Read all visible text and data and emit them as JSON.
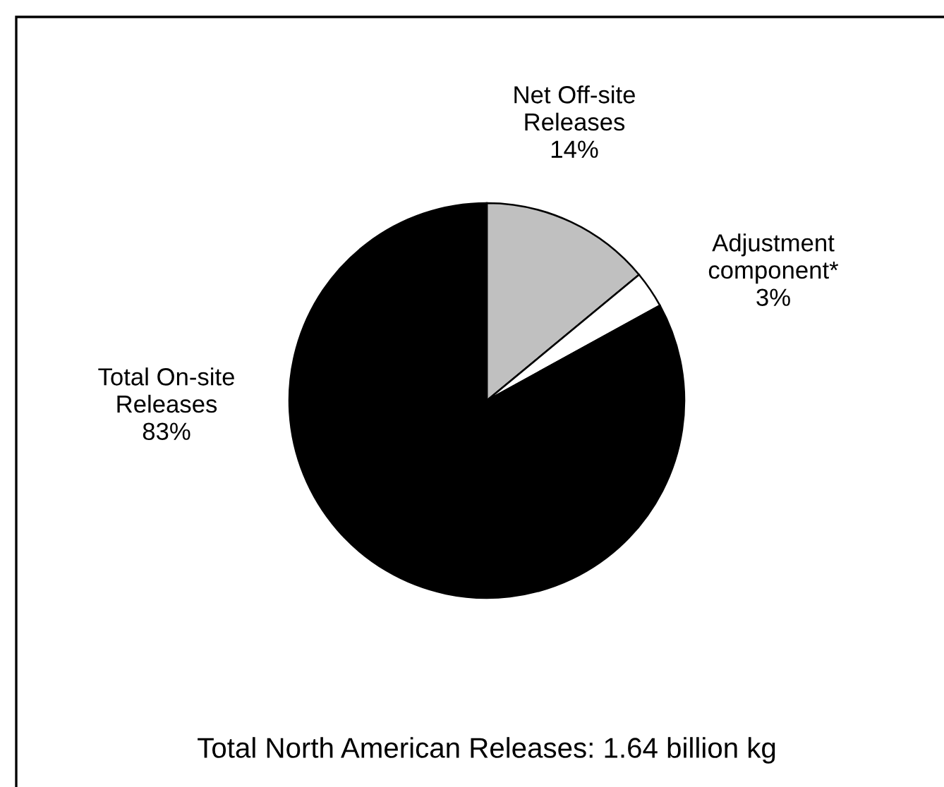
{
  "chart_data": {
    "type": "pie",
    "categories": [
      "Net Off-site Releases",
      "Adjustment component*",
      "Total On-site Releases"
    ],
    "values": [
      14,
      3,
      83
    ],
    "value_labels": [
      "14%",
      "3%",
      "83%"
    ],
    "colors": [
      "#c0c0c0",
      "#ffffff",
      "#000000"
    ],
    "annotations": [
      "Total North American Releases: 1.64 billion kg"
    ]
  }
}
